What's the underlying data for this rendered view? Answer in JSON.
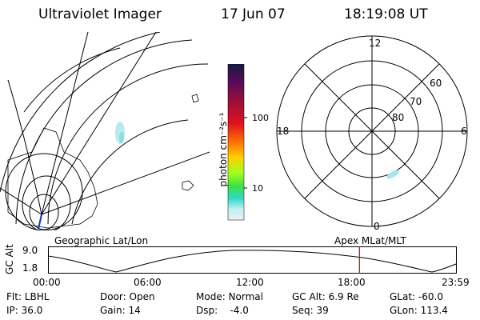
{
  "header": {
    "instrument": "Ultraviolet Imager",
    "date": "17 Jun 07",
    "time": "18:19:08 UT"
  },
  "colorbar": {
    "unit_label": "photon cm⁻²s⁻¹",
    "ticks": [
      "100",
      "10"
    ],
    "colors": [
      "#1a1a40",
      "#5a0a5a",
      "#a0103a",
      "#e01020",
      "#ff7000",
      "#ffd000",
      "#a0ff20",
      "#40e040",
      "#30d8c8",
      "#c0f0f0",
      "#f0f0f0"
    ]
  },
  "polar_plot": {
    "mlt_labels": {
      "top": "12",
      "left": "18",
      "right": "6",
      "bottom": "0"
    },
    "lat_labels": [
      "60",
      "70",
      "80"
    ]
  },
  "altitude_plot": {
    "left_title": "Geographic Lat/Lon",
    "right_title": "Apex MLat/MLT",
    "y_axis_label": "GC Alt",
    "y_ticks": [
      "9.0",
      "1.8"
    ],
    "x_ticks": [
      "00:00",
      "06:00",
      "12:00",
      "18:00",
      "23:59"
    ],
    "marker_color": "#cc0000",
    "marker_hours": 18.32
  },
  "info": {
    "row1": {
      "filter": "Flt: LBHL",
      "door": "Door: Open",
      "mode": "Mode: Normal",
      "gc_alt": "GC Alt: 6.9 Re",
      "glat": "GLat: -60.0"
    },
    "row2": {
      "ip": "IP: 36.0",
      "gain": "Gain: 14",
      "dsp": "Dsp:    -4.0",
      "seq": "Seq: 39",
      "glon": "GLon: 113.4"
    }
  }
}
